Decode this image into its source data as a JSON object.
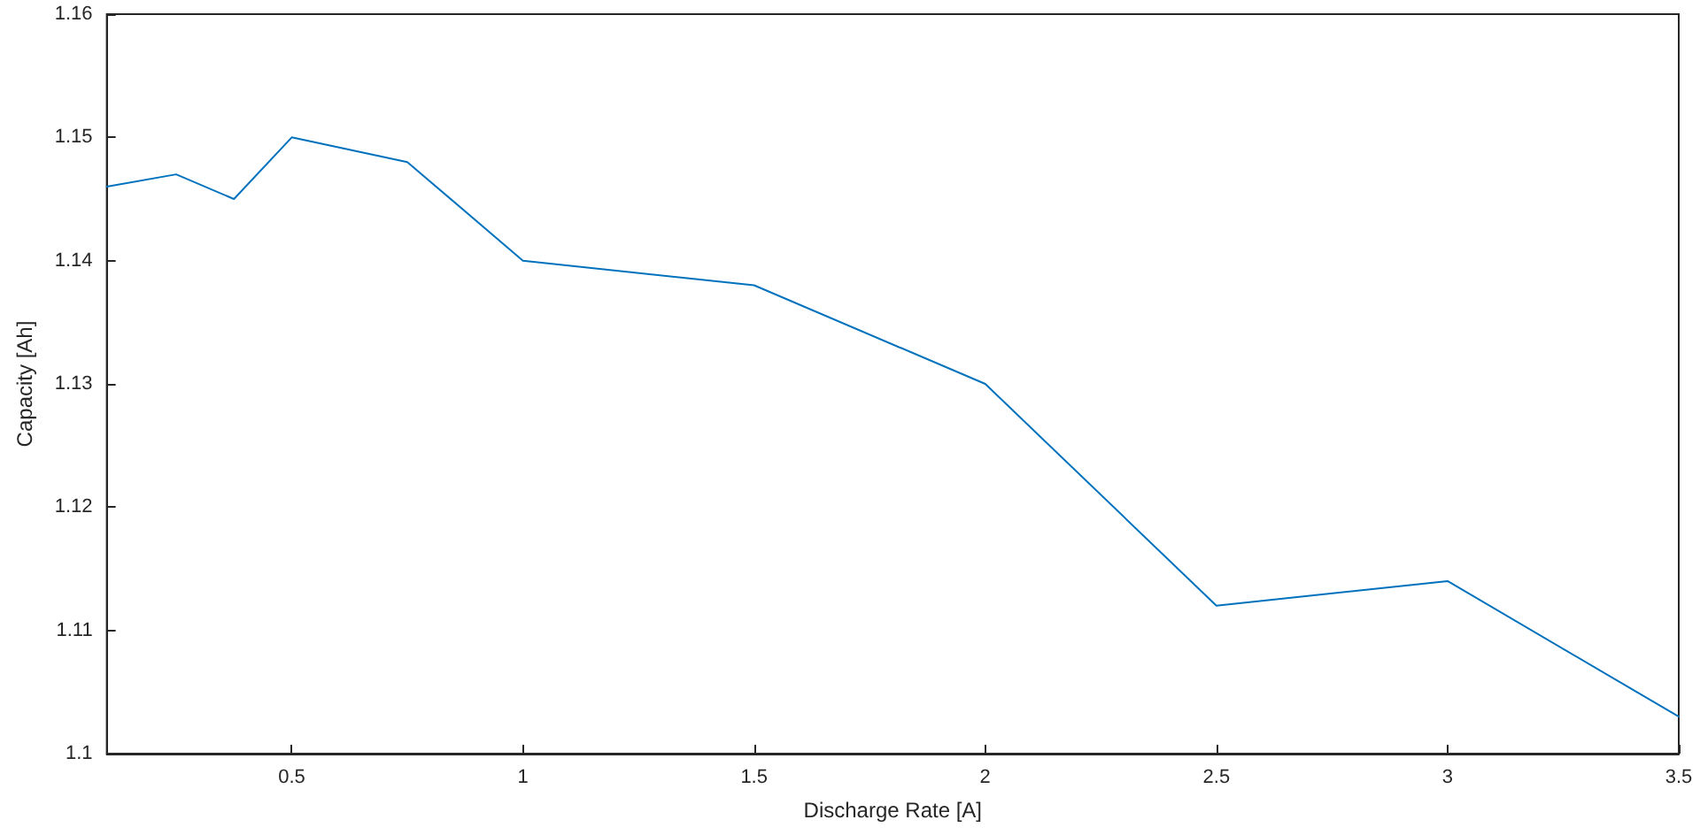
{
  "chart_data": {
    "type": "line",
    "xlabel": "Discharge Rate [A]",
    "ylabel": "Capacity [Ah]",
    "x": [
      0.1,
      0.25,
      0.375,
      0.5,
      0.75,
      1,
      1.5,
      2,
      2.5,
      3,
      3.5
    ],
    "series": [
      {
        "color": "#0072bd",
        "values": [
          1.146,
          1.147,
          1.145,
          1.15,
          1.148,
          1.14,
          1.138,
          1.13,
          1.112,
          1.114,
          1.103
        ]
      }
    ],
    "xlim": [
      0.1,
      3.5
    ],
    "xticks": [
      0.5,
      1,
      1.5,
      2,
      2.5,
      3,
      3.5
    ],
    "ylim": [
      1.1,
      1.16
    ],
    "yticks": [
      1.1,
      1.11,
      1.12,
      1.13,
      1.14,
      1.15,
      1.16
    ],
    "grid": false,
    "marker": "none",
    "line_style": "solid"
  }
}
